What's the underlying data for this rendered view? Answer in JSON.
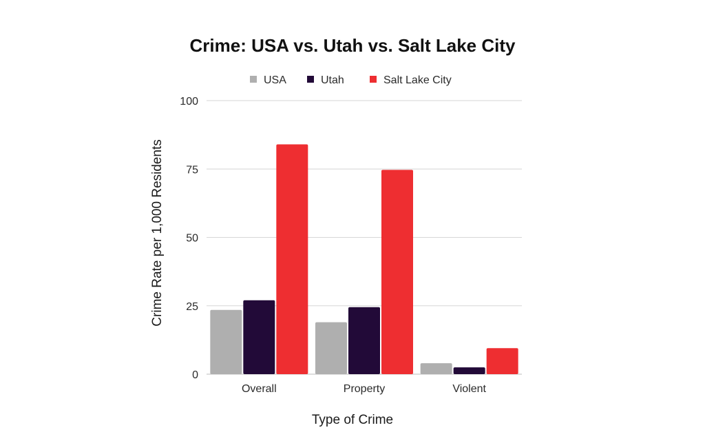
{
  "chart_data": {
    "type": "bar",
    "title": "Crime: USA vs. Utah vs. Salt Lake City",
    "xlabel": "Type of Crime",
    "ylabel": "Crime Rate per 1,000 Residents",
    "categories": [
      "Overall",
      "Property",
      "Violent"
    ],
    "series": [
      {
        "name": "USA",
        "color": "#afafaf",
        "values": [
          23.5,
          19.0,
          4.0
        ]
      },
      {
        "name": "Utah",
        "color": "#220a38",
        "values": [
          27.0,
          24.5,
          2.5
        ]
      },
      {
        "name": "Salt Lake City",
        "color": "#ee2e31",
        "values": [
          84.0,
          74.7,
          9.5
        ]
      }
    ],
    "ylim": [
      0,
      100
    ],
    "yticks": [
      "0",
      "25",
      "50",
      "75",
      "100"
    ],
    "ytick_values": [
      0,
      25,
      50,
      75,
      100
    ],
    "grid": true,
    "legend_position": "top-center"
  }
}
